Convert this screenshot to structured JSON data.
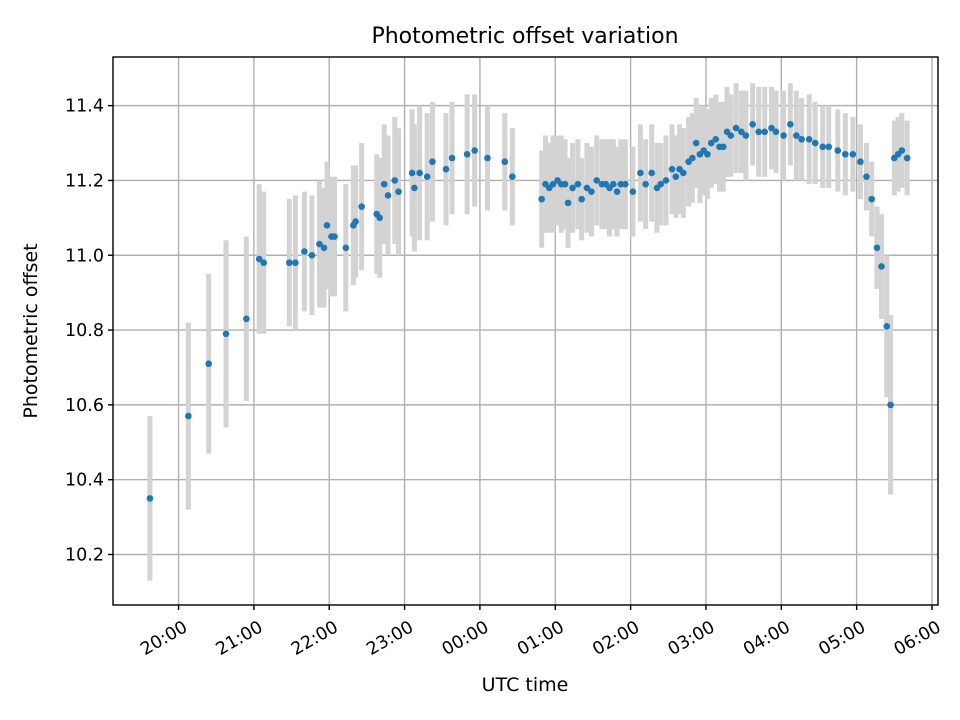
{
  "chart_data": {
    "type": "scatter",
    "title": "Photometric offset variation",
    "xlabel": "UTC time",
    "ylabel": "Photometric offset",
    "x_unit": "hours after 20:00 UTC",
    "xlim": [
      -0.87,
      10.08
    ],
    "ylim": [
      10.065,
      11.53
    ],
    "xticks": [
      {
        "value": 0,
        "label": "20:00"
      },
      {
        "value": 1,
        "label": "21:00"
      },
      {
        "value": 2,
        "label": "22:00"
      },
      {
        "value": 3,
        "label": "23:00"
      },
      {
        "value": 4,
        "label": "00:00"
      },
      {
        "value": 5,
        "label": "01:00"
      },
      {
        "value": 6,
        "label": "02:00"
      },
      {
        "value": 7,
        "label": "03:00"
      },
      {
        "value": 8,
        "label": "04:00"
      },
      {
        "value": 9,
        "label": "05:00"
      },
      {
        "value": 10,
        "label": "06:00"
      }
    ],
    "yticks": [
      {
        "value": 10.2,
        "label": "10.2"
      },
      {
        "value": 10.4,
        "label": "10.4"
      },
      {
        "value": 10.6,
        "label": "10.6"
      },
      {
        "value": 10.8,
        "label": "10.8"
      },
      {
        "value": 11.0,
        "label": "11.0"
      },
      {
        "value": 11.2,
        "label": "11.2"
      },
      {
        "value": 11.4,
        "label": "11.4"
      }
    ],
    "grid": true,
    "marker_color": "#1f77b4",
    "errorbar_color": "#d3d3d3",
    "series": [
      {
        "name": "Photometric offset",
        "x": [
          -0.38,
          0.13,
          0.4,
          0.63,
          0.9,
          1.07,
          1.13,
          1.47,
          1.55,
          1.67,
          1.77,
          1.87,
          1.93,
          1.97,
          2.03,
          2.07,
          2.22,
          2.32,
          2.35,
          2.43,
          2.63,
          2.67,
          2.73,
          2.78,
          2.87,
          2.92,
          3.1,
          3.13,
          3.2,
          3.3,
          3.37,
          3.55,
          3.63,
          3.83,
          3.93,
          4.1,
          4.33,
          4.43,
          4.82,
          4.87,
          4.92,
          4.97,
          5.03,
          5.08,
          5.13,
          5.17,
          5.23,
          5.3,
          5.35,
          5.42,
          5.48,
          5.55,
          5.62,
          5.67,
          5.72,
          5.77,
          5.82,
          5.87,
          5.93,
          6.03,
          6.13,
          6.2,
          6.28,
          6.35,
          6.4,
          6.47,
          6.55,
          6.6,
          6.65,
          6.7,
          6.77,
          6.82,
          6.87,
          6.92,
          6.97,
          7.02,
          7.07,
          7.13,
          7.18,
          7.23,
          7.28,
          7.33,
          7.4,
          7.47,
          7.53,
          7.62,
          7.7,
          7.78,
          7.87,
          7.93,
          8.03,
          8.12,
          8.2,
          8.27,
          8.37,
          8.45,
          8.55,
          8.63,
          8.75,
          8.85,
          8.95,
          9.05,
          9.13,
          9.2,
          9.27,
          9.33,
          9.4,
          9.45,
          9.5,
          9.55,
          9.6,
          9.67
        ],
        "y": [
          10.35,
          10.57,
          10.71,
          10.79,
          10.83,
          10.99,
          10.98,
          10.98,
          10.98,
          11.01,
          11.0,
          11.03,
          11.02,
          11.08,
          11.05,
          11.05,
          11.02,
          11.08,
          11.09,
          11.13,
          11.11,
          11.1,
          11.19,
          11.16,
          11.2,
          11.17,
          11.22,
          11.18,
          11.22,
          11.21,
          11.25,
          11.23,
          11.26,
          11.27,
          11.28,
          11.26,
          11.25,
          11.21,
          11.15,
          11.19,
          11.18,
          11.19,
          11.2,
          11.19,
          11.19,
          11.14,
          11.18,
          11.19,
          11.15,
          11.18,
          11.17,
          11.2,
          11.19,
          11.19,
          11.18,
          11.19,
          11.17,
          11.19,
          11.19,
          11.17,
          11.22,
          11.19,
          11.22,
          11.18,
          11.19,
          11.2,
          11.23,
          11.21,
          11.23,
          11.22,
          11.25,
          11.26,
          11.3,
          11.27,
          11.28,
          11.27,
          11.3,
          11.31,
          11.29,
          11.29,
          11.33,
          11.32,
          11.34,
          11.33,
          11.32,
          11.35,
          11.33,
          11.33,
          11.34,
          11.33,
          11.32,
          11.35,
          11.32,
          11.31,
          11.31,
          11.3,
          11.29,
          11.29,
          11.28,
          11.27,
          11.27,
          11.25,
          11.21,
          11.15,
          11.02,
          10.97,
          10.81,
          10.6,
          11.26,
          11.27,
          11.28,
          11.26
        ],
        "err": [
          0.22,
          0.25,
          0.24,
          0.25,
          0.22,
          0.2,
          0.19,
          0.17,
          0.18,
          0.16,
          0.16,
          0.17,
          0.16,
          0.17,
          0.16,
          0.16,
          0.17,
          0.16,
          0.15,
          0.17,
          0.16,
          0.16,
          0.16,
          0.16,
          0.17,
          0.17,
          0.17,
          0.17,
          0.18,
          0.17,
          0.16,
          0.15,
          0.15,
          0.16,
          0.15,
          0.14,
          0.13,
          0.13,
          0.13,
          0.13,
          0.12,
          0.13,
          0.12,
          0.13,
          0.12,
          0.12,
          0.12,
          0.12,
          0.11,
          0.12,
          0.12,
          0.12,
          0.12,
          0.12,
          0.13,
          0.12,
          0.12,
          0.12,
          0.12,
          0.12,
          0.13,
          0.12,
          0.13,
          0.12,
          0.11,
          0.12,
          0.12,
          0.11,
          0.12,
          0.12,
          0.12,
          0.12,
          0.12,
          0.13,
          0.12,
          0.12,
          0.12,
          0.12,
          0.12,
          0.12,
          0.12,
          0.11,
          0.12,
          0.11,
          0.12,
          0.11,
          0.12,
          0.12,
          0.11,
          0.11,
          0.12,
          0.11,
          0.12,
          0.11,
          0.12,
          0.11,
          0.11,
          0.11,
          0.11,
          0.11,
          0.1,
          0.1,
          0.09,
          0.1,
          0.11,
          0.14,
          0.19,
          0.24,
          0.1,
          0.1,
          0.1,
          0.1
        ]
      }
    ]
  }
}
